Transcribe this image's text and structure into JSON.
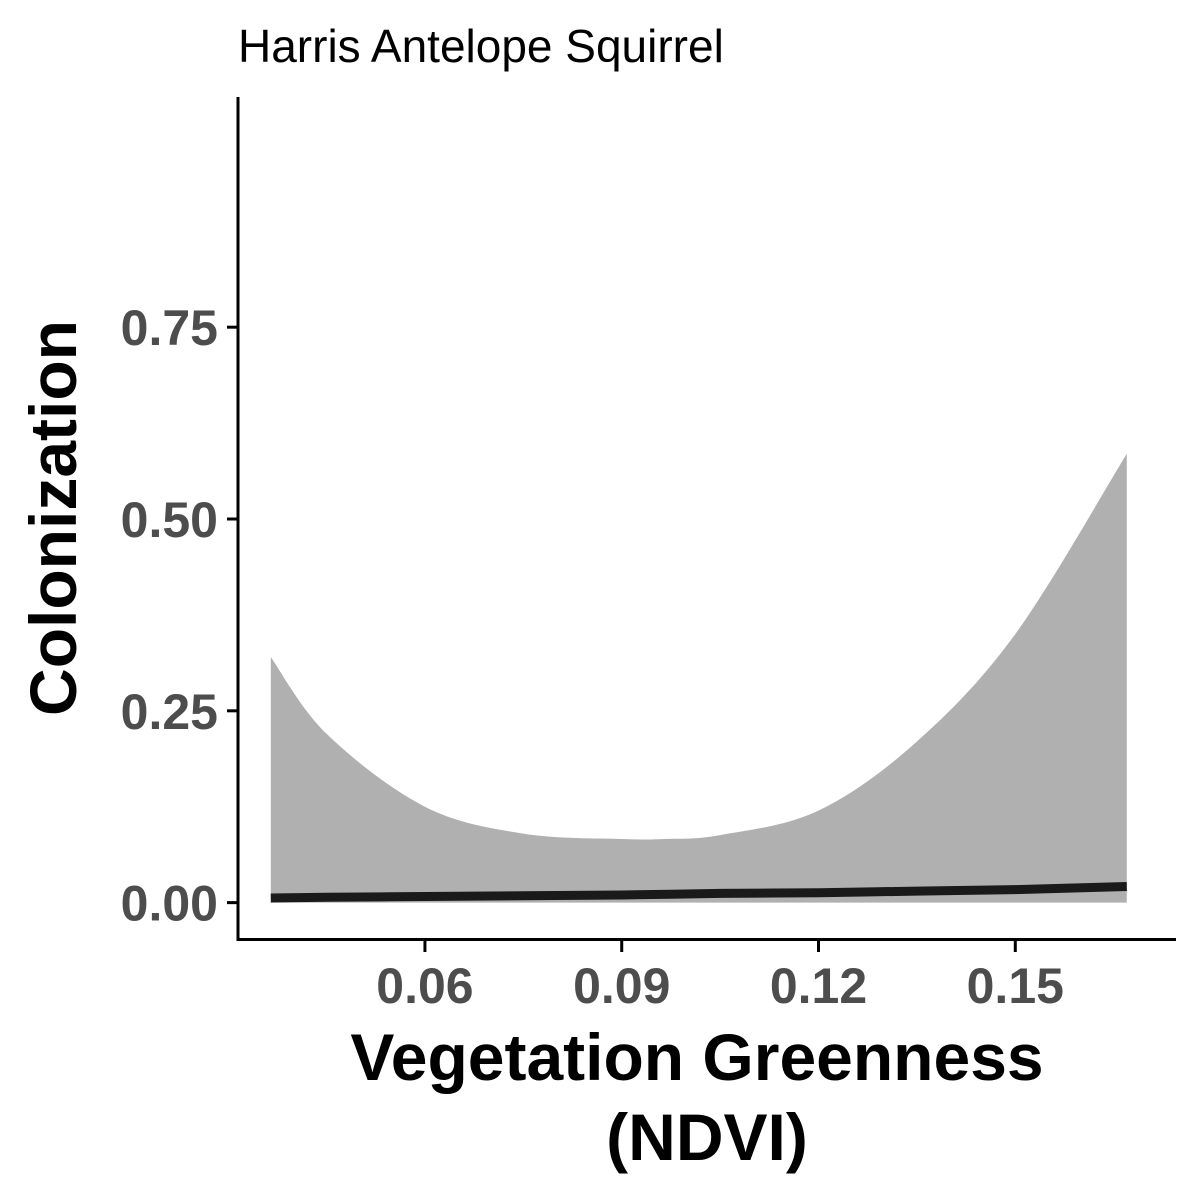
{
  "chart_data": {
    "type": "line",
    "title": "Harris Antelope Squirrel",
    "xlabel_lines": [
      "Vegetation Greenness",
      "(NDVI)"
    ],
    "ylabel": "Colonization",
    "xlim": [
      0.0315,
      0.1745
    ],
    "ylim": [
      -0.05,
      1.05
    ],
    "x_ticks": [
      0.06,
      0.09,
      0.12,
      0.15
    ],
    "x_tick_labels": [
      "0.06",
      "0.09",
      "0.12",
      "0.15"
    ],
    "y_ticks": [
      0.0,
      0.25,
      0.5,
      0.75
    ],
    "y_tick_labels": [
      "0.00",
      "0.25",
      "0.50",
      "0.75"
    ],
    "grid": false,
    "series": [
      {
        "x": [
          0.0365,
          0.045,
          0.06,
          0.075,
          0.09,
          0.105,
          0.12,
          0.135,
          0.15,
          0.167
        ],
        "y": [
          0.006,
          0.007,
          0.008,
          0.009,
          0.01,
          0.012,
          0.013,
          0.015,
          0.017,
          0.021
        ],
        "color": "#1a1a1a"
      }
    ],
    "ribbon": {
      "x": [
        0.0365,
        0.045,
        0.06,
        0.075,
        0.09,
        0.0965,
        0.105,
        0.12,
        0.135,
        0.15,
        0.167
      ],
      "lower": [
        0.0,
        0.0,
        0.0,
        0.0,
        0.0,
        0.0,
        0.0,
        0.0,
        0.0,
        0.0,
        0.0
      ],
      "upper": [
        0.32,
        0.22,
        0.125,
        0.09,
        0.083,
        0.083,
        0.088,
        0.12,
        0.21,
        0.35,
        0.585
      ],
      "color": "#b0b0b0"
    }
  }
}
